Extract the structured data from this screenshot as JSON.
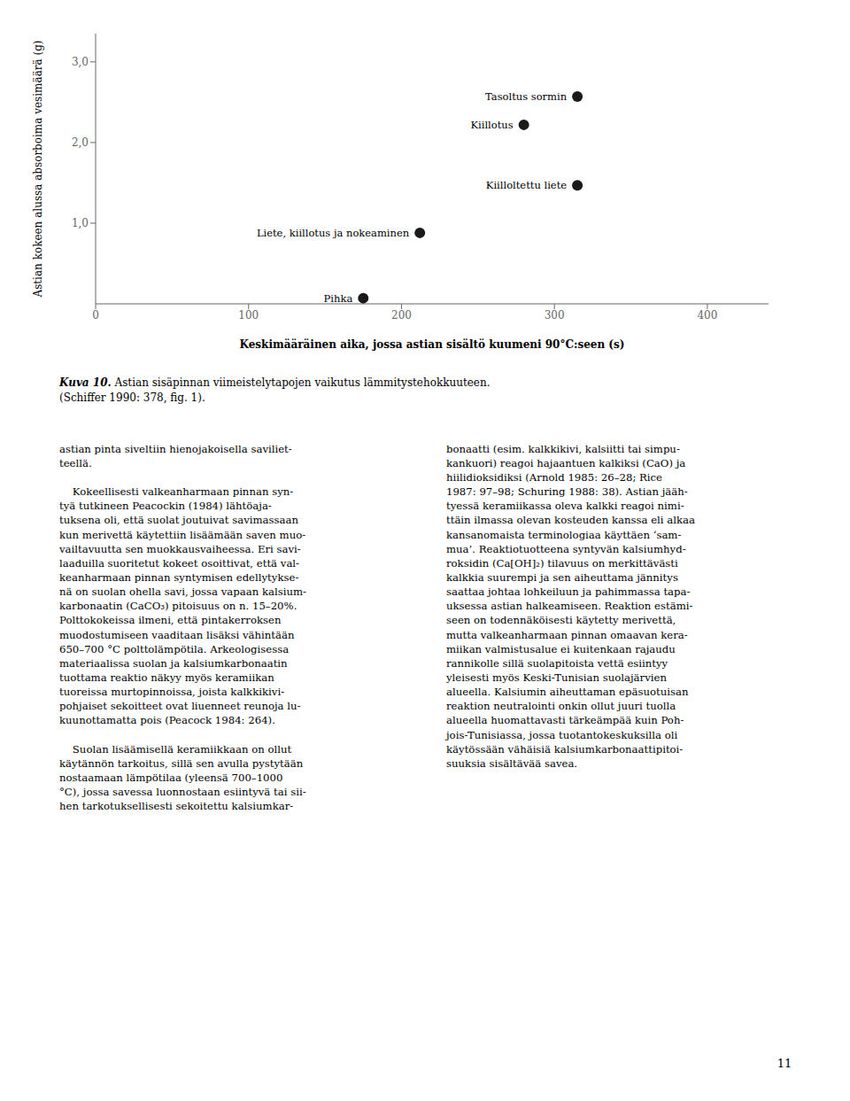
{
  "chart_data": {
    "type": "scatter",
    "xlabel": "Keskimääräinen aika, jossa astian sisältö kuumeni 90°C:seen (s)",
    "ylabel": "Astian kokeen alussa absorboima vesimäärä (g)",
    "xlim": [
      0,
      440
    ],
    "ylim": [
      0,
      3.35
    ],
    "xticks": [
      0,
      100,
      200,
      300,
      400
    ],
    "yticks": [
      {
        "value": 1.0,
        "label": "1,0"
      },
      {
        "value": 2.0,
        "label": "2,0"
      },
      {
        "value": 3.0,
        "label": "3,0"
      }
    ],
    "points": [
      {
        "x": 175,
        "y": 0.07,
        "label": "Pihka"
      },
      {
        "x": 212,
        "y": 0.88,
        "label": "Liete, kiillotus ja nokeaminen"
      },
      {
        "x": 315,
        "y": 2.57,
        "label": "Tasoltus sormin"
      },
      {
        "x": 280,
        "y": 2.22,
        "label": "Kiillotus"
      },
      {
        "x": 315,
        "y": 1.47,
        "label": "Kiilloltettu liete"
      }
    ],
    "color": "#1a1a1a",
    "marker": "circle",
    "grid": false
  },
  "caption_italic": "Kuva 10.",
  "caption_rest": " Astian sisäpinnan viimeistelytapojen vaikutus lämmitystehokkuuteen.",
  "caption_line2": "(Schiffer 1990: 378, fig. 1).",
  "left_col": "astian pinta siveltiin hienojakoisella saviliet-\nteellä.\n\n    Kokeellisesti valkeanharmaan pinnan syn-\ntyä tutkineen Peacockin (1984) lähtöaja-\ntuksena oli, että suolat joutuivat savimassaan\nkun merivettä käytettiin lisäämään saven muo-\nvailtavuutta sen muokkausvaiheessa. Eri savi-\nlaaduilla suoritetut kokeet osoittivat, että val-\nkeanharmaan pinnan syntymisen edellytykse-\nnä on suolan ohella savi, jossa vapaan kalsium-\nkarbonaatin (CaCO₃) pitoisuus on n. 15–20%.\nPolttokokeissa ilmeni, että pintakerroksen\nmuodostumiseen vaaditaan lisäksi vähintään\n650–700 °C polttolämpötila. Arkeologisessa\nmateriaalissa suolan ja kalsiumkarbonaatin\ntuottama reaktio näkyy myös keramiikan\ntuoreissa murtopinnoissa, joista kalkkikivi-\npohjaiset sekoitteet ovat liuenneet reunoja lu-\nkuunottamatta pois (Peacock 1984: 264).\n\n    Suolan lisäämisellä keramiikkaan on ollut\nkäytännön tarkoitus, sillä sen avulla pystytään\nnostaamaan lämpötilaa (yleensä 700–1000\n°C), jossa savessa luonnostaan esiintyvä tai sii-\nhen tarkotuksellisesti sekoitettu kalsiumkar-",
  "right_col": "bonaatti (esim. kalkkikivi, kalsiitti tai simpu-\nkankuori) reagoi hajaantuen kalkiksi (CaO) ja\nhiilidioksidiksi (Arnold 1985: 26–28; Rice\n1987: 97–98; Schuring 1988: 38). Astian jääh-\ntyessä keramiikassa oleva kalkki reagoi nimi-\nttäin ilmassa olevan kosteuden kanssa eli alkaa\nkansanomaista terminologiaa käyttäen ‘sam-\nmua’. Reaktiotuotteena syntyvän kalsiumhyd-\nroksidin (Ca[OH]₂) tilavuus on merkittävästi\nkalkkia suurempi ja sen aiheuttama jännitys\nsaattaa johtaa lohkeiluun ja pahimmassa tapa-\nuksessa astian halkeamiseen. Reaktion estämi-\nseen on todennäköisesti käytetty merivettä,\nmutta valkeanharmaan pinnan omaavan kera-\nmiikan valmistusalue ei kuitenkaan rajaudu\nrannikolle sillä suolapitoista vettä esiintyy\nyleisesti myös Keski-Tunisian suolajärvien\nalueella. Kalsiumin aiheuttaman epäsuotuisan\nreaktion neutralointi onkin ollut juuri tuolla\nalueella huomattavasti tärkeämpää kuin Poh-\njois-Tunisiassa, jossa tuotantokeskuksilla oli\nkäytössään vähäisiä kalsiumkarbonaattipitoi-\nsuuksia sisältävää savea.",
  "page_number": "11"
}
